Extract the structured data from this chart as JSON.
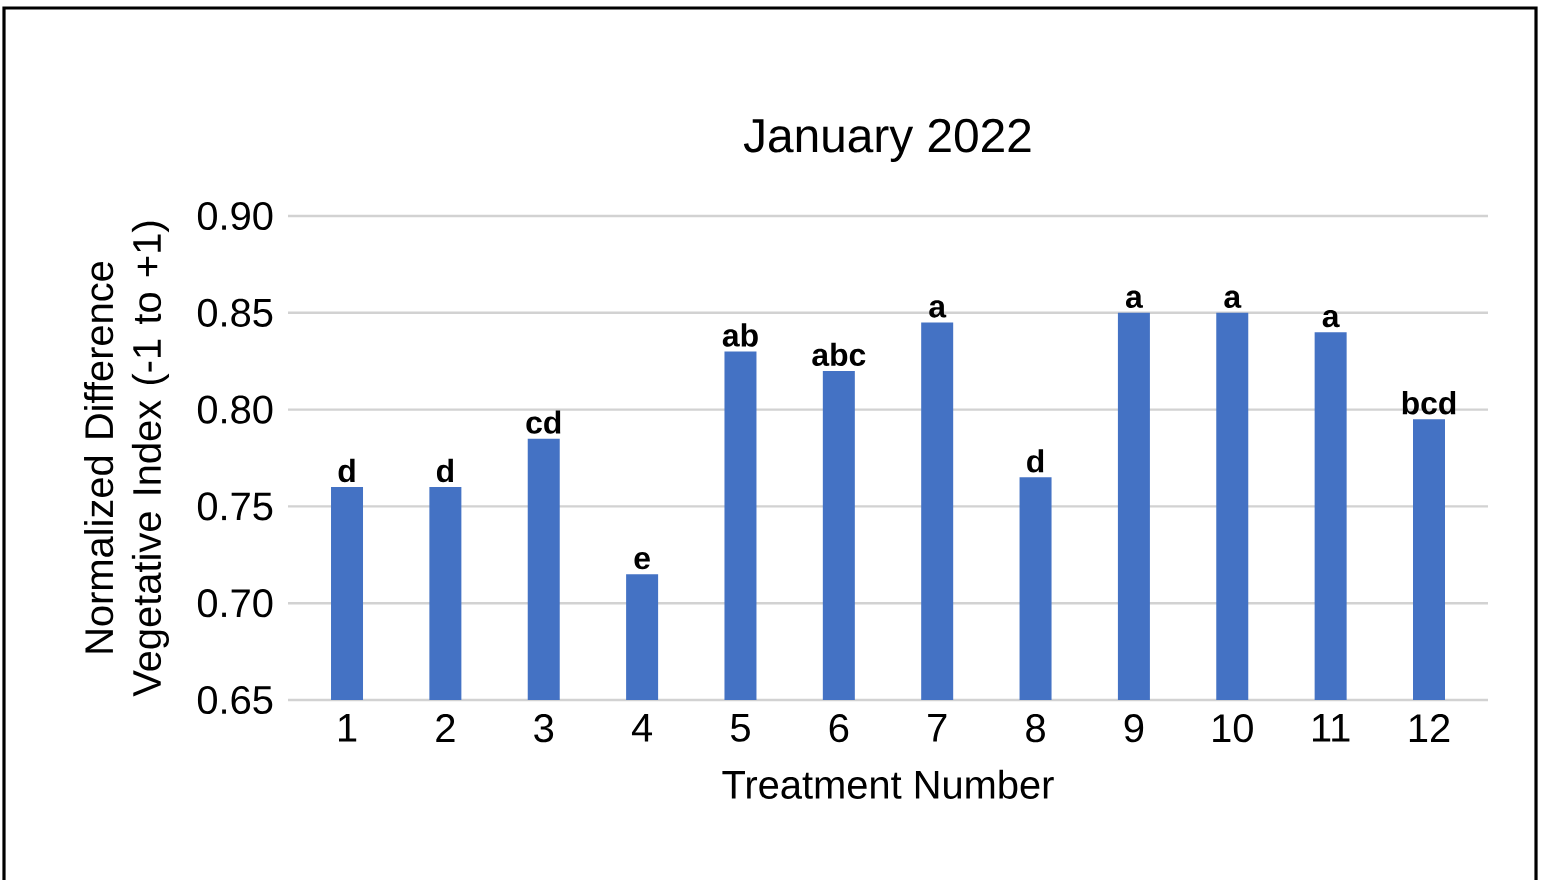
{
  "chart_data": {
    "type": "bar",
    "title": "January 2022",
    "xlabel": "Treatment Number",
    "ylabel": "Normalized Difference Vegetative Index (-1 to +1)",
    "categories": [
      "1",
      "2",
      "3",
      "4",
      "5",
      "6",
      "7",
      "8",
      "9",
      "10",
      "11",
      "12"
    ],
    "values": [
      0.76,
      0.76,
      0.785,
      0.715,
      0.83,
      0.82,
      0.845,
      0.765,
      0.85,
      0.85,
      0.84,
      0.795
    ],
    "value_labels": [
      "d",
      "d",
      "cd",
      "e",
      "ab",
      "abc",
      "a",
      "d",
      "a",
      "a",
      "a",
      "bcd"
    ],
    "color": "#4472c4",
    "ylim": [
      0.65,
      0.9
    ],
    "yticks": [
      {
        "value": 0.65,
        "label": "0.65"
      },
      {
        "value": 0.7,
        "label": "0.70"
      },
      {
        "value": 0.75,
        "label": "0.75"
      },
      {
        "value": 0.8,
        "label": "0.80"
      },
      {
        "value": 0.85,
        "label": "0.85"
      },
      {
        "value": 0.9,
        "label": "0.90"
      }
    ],
    "grid": "y"
  }
}
